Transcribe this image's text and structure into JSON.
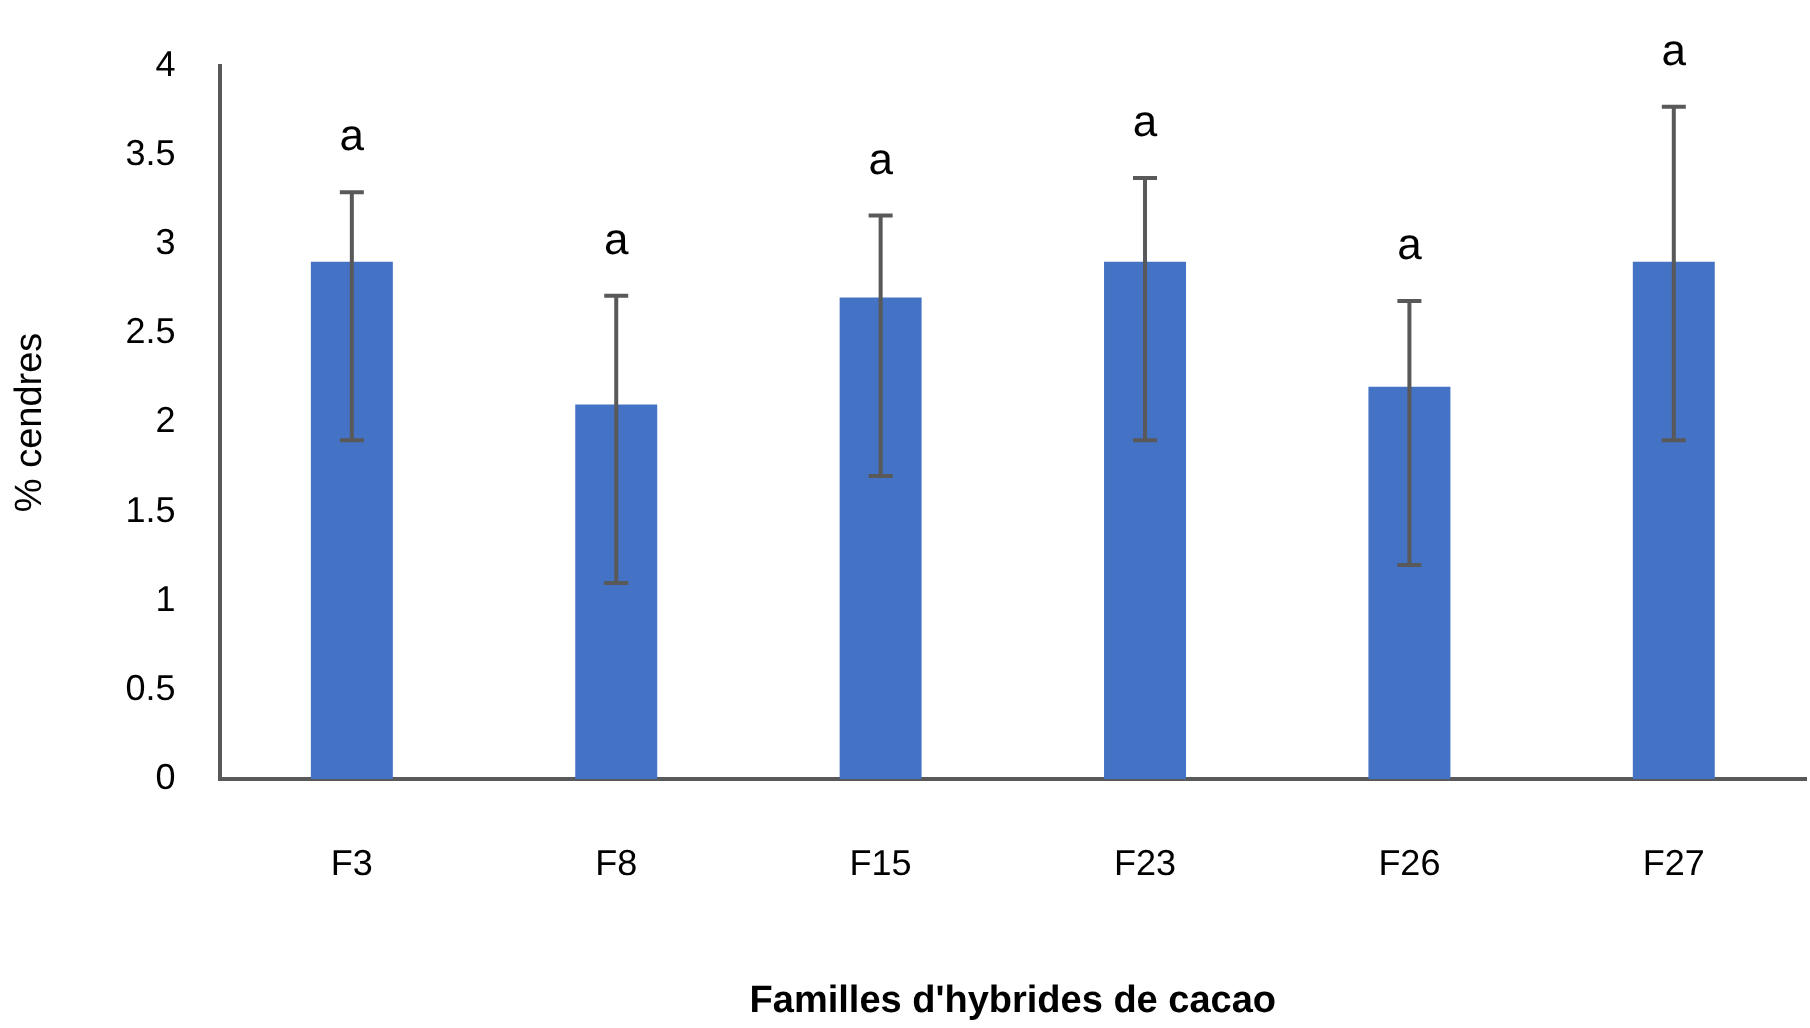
{
  "chart_data": {
    "type": "bar",
    "xlabel": "Familles d'hybrides de cacao",
    "ylabel": "% cendres",
    "categories": [
      "F3",
      "F8",
      "F15",
      "F23",
      "F26",
      "F27"
    ],
    "values": [
      2.9,
      2.1,
      2.7,
      2.9,
      2.2,
      2.9
    ],
    "errors": [
      [
        1.9,
        3.29
      ],
      [
        1.1,
        2.71
      ],
      [
        1.7,
        3.16
      ],
      [
        1.9,
        3.37
      ],
      [
        1.2,
        2.68
      ],
      [
        1.9,
        3.77
      ]
    ],
    "color": "#4472c4",
    "ylim": [
      0,
      4
    ],
    "yticks": [
      0,
      0.5,
      1,
      1.5,
      2,
      2.5,
      3,
      3.5,
      4
    ],
    "grid": false,
    "legend": false,
    "annotations": [
      {
        "text": "a",
        "x": "F3",
        "y": 3.29
      },
      {
        "text": "a",
        "x": "F8",
        "y": 2.71
      },
      {
        "text": "a",
        "x": "F15",
        "y": 3.16
      },
      {
        "text": "a",
        "x": "F23",
        "y": 3.37
      },
      {
        "text": "a",
        "x": "F26",
        "y": 2.68
      },
      {
        "text": "a",
        "x": "F27",
        "y": 3.77
      }
    ]
  }
}
